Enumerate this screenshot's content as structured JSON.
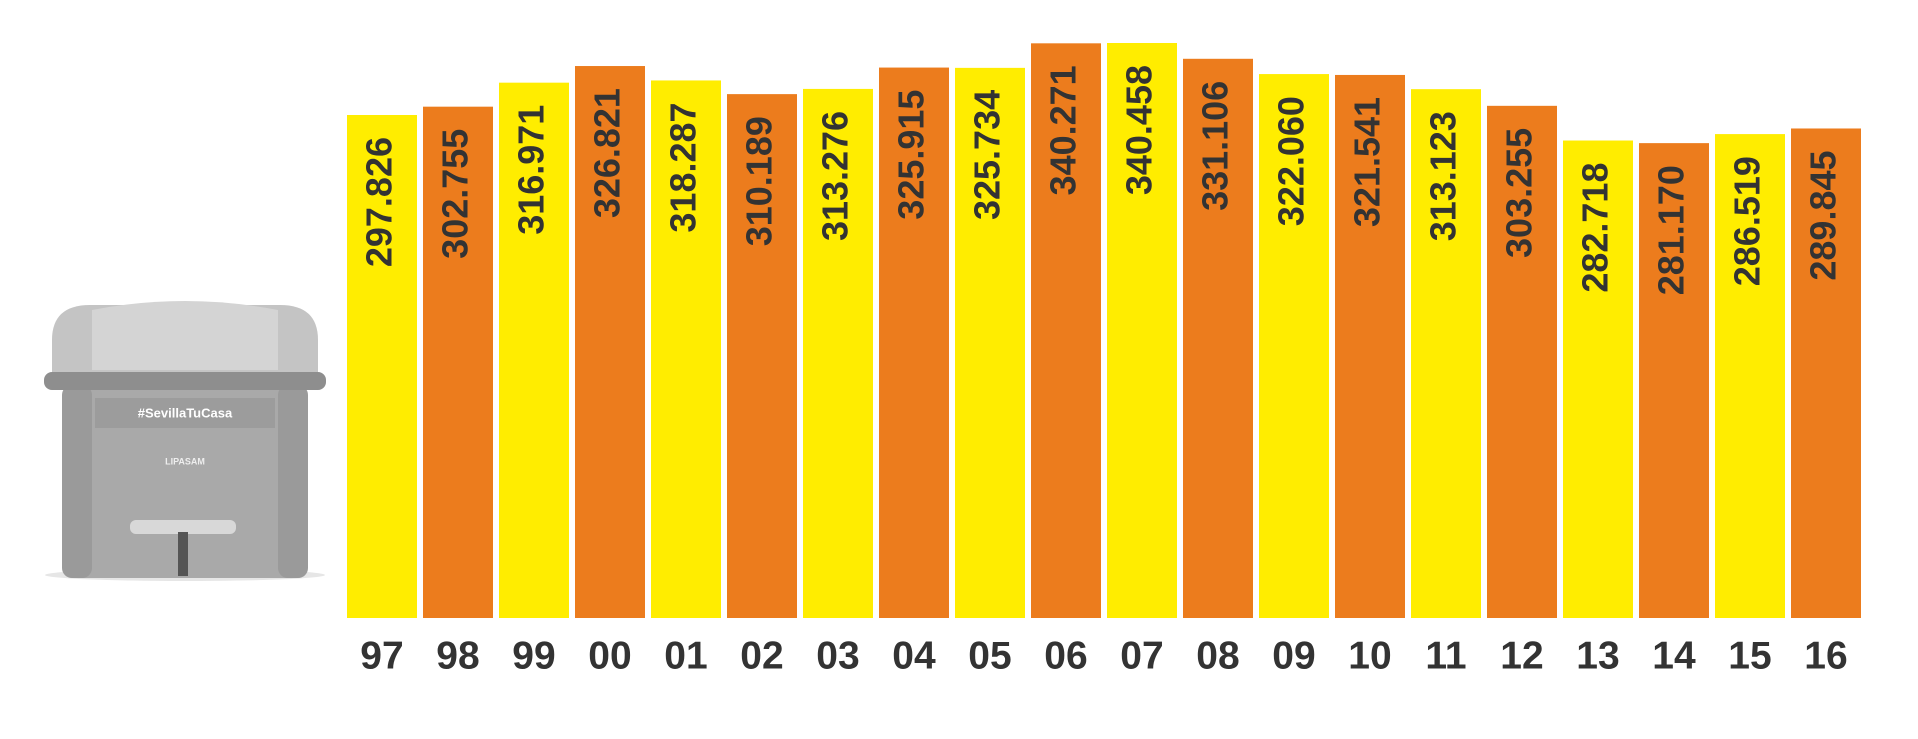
{
  "chart_data": {
    "type": "bar",
    "categories": [
      "97",
      "98",
      "99",
      "00",
      "01",
      "02",
      "03",
      "04",
      "05",
      "06",
      "07",
      "08",
      "09",
      "10",
      "11",
      "12",
      "13",
      "14",
      "15",
      "16"
    ],
    "values": [
      297826,
      302755,
      316971,
      326821,
      318287,
      310189,
      313276,
      325915,
      325734,
      340271,
      340458,
      331106,
      322060,
      321541,
      313123,
      303255,
      282718,
      281170,
      286519,
      289845
    ],
    "value_labels": [
      "297.826",
      "302.755",
      "316.971",
      "326.821",
      "318.287",
      "310.189",
      "313.276",
      "325.915",
      "325.734",
      "340.271",
      "340.458",
      "331.106",
      "322.060",
      "321.541",
      "313.123",
      "303.255",
      "282.718",
      "281.170",
      "286.519",
      "289.845"
    ],
    "colors": [
      "#ffed00",
      "#ec7c1d"
    ]
  },
  "illustration": {
    "slogan": "#SevillaTuCasa",
    "brand": "LIPASAM"
  }
}
